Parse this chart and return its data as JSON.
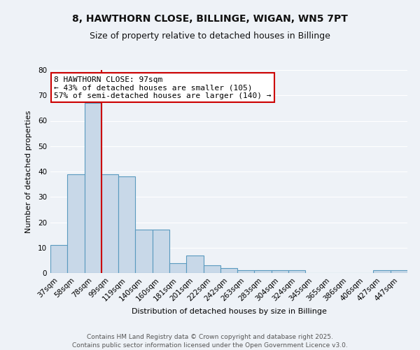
{
  "title": "8, HAWTHORN CLOSE, BILLINGE, WIGAN, WN5 7PT",
  "subtitle": "Size of property relative to detached houses in Billinge",
  "xlabel": "Distribution of detached houses by size in Billinge",
  "ylabel": "Number of detached properties",
  "categories": [
    "37sqm",
    "58sqm",
    "78sqm",
    "99sqm",
    "119sqm",
    "140sqm",
    "160sqm",
    "181sqm",
    "201sqm",
    "222sqm",
    "242sqm",
    "263sqm",
    "283sqm",
    "304sqm",
    "324sqm",
    "345sqm",
    "365sqm",
    "386sqm",
    "406sqm",
    "427sqm",
    "447sqm"
  ],
  "values": [
    11,
    39,
    67,
    39,
    38,
    17,
    17,
    4,
    7,
    3,
    2,
    1,
    1,
    1,
    1,
    0,
    0,
    0,
    0,
    1,
    1
  ],
  "bar_color": "#c8d8e8",
  "bar_edge_color": "#5a9abf",
  "vline_color": "#cc0000",
  "vline_pos": 2.5,
  "annotation_text": "8 HAWTHORN CLOSE: 97sqm\n← 43% of detached houses are smaller (105)\n57% of semi-detached houses are larger (140) →",
  "annotation_box_color": "#ffffff",
  "annotation_box_edge": "#cc0000",
  "ylim": [
    0,
    80
  ],
  "yticks": [
    0,
    10,
    20,
    30,
    40,
    50,
    60,
    70,
    80
  ],
  "footer": "Contains HM Land Registry data © Crown copyright and database right 2025.\nContains public sector information licensed under the Open Government Licence v3.0.",
  "background_color": "#eef2f7",
  "grid_color": "#ffffff",
  "title_fontsize": 10,
  "subtitle_fontsize": 9,
  "axis_label_fontsize": 8,
  "tick_fontsize": 7.5,
  "annotation_fontsize": 8,
  "footer_fontsize": 6.5
}
